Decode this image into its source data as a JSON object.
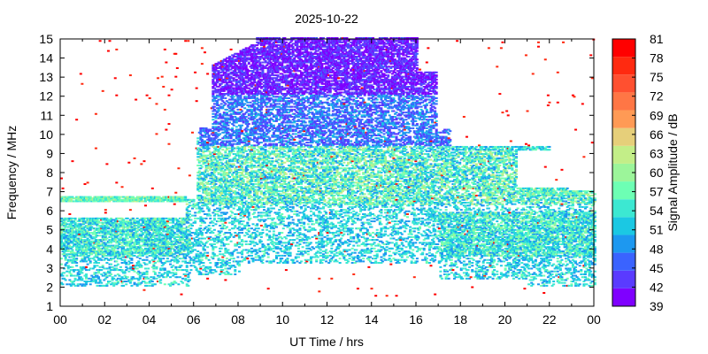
{
  "chart_data": {
    "type": "heatmap",
    "title": "2025-10-22",
    "xlabel": "UT Time / hrs",
    "ylabel": "Frequency / MHz",
    "xlim": [
      0,
      24
    ],
    "ylim": [
      1,
      15
    ],
    "xticks": [
      "00",
      "02",
      "04",
      "06",
      "08",
      "10",
      "12",
      "14",
      "16",
      "18",
      "20",
      "22",
      "00"
    ],
    "yticks": [
      "1",
      "2",
      "3",
      "4",
      "5",
      "6",
      "7",
      "8",
      "9",
      "10",
      "11",
      "12",
      "13",
      "14",
      "15"
    ],
    "colorbar": {
      "label": "Signal Amplitude / dB",
      "ticks": [
        "39",
        "42",
        "45",
        "48",
        "51",
        "54",
        "57",
        "60",
        "63",
        "66",
        "69",
        "72",
        "75",
        "78",
        "81"
      ],
      "min": 39,
      "max": 81,
      "colors": [
        "#7f00ff",
        "#5a3bff",
        "#3a63ff",
        "#1d98f0",
        "#1bc8e3",
        "#3ce8d2",
        "#6dffb4",
        "#9cf59a",
        "#c3ee88",
        "#e6cf7a",
        "#ff9a55",
        "#ff7645",
        "#ff5030",
        "#ff2a10",
        "#ff0000"
      ]
    },
    "grid": false,
    "legend": "none",
    "series_description": [
      {
        "time_range": [
          0,
          5.7
        ],
        "freq_range": [
          2,
          6.6
        ],
        "amplitude": [
          48,
          60
        ]
      },
      {
        "time_range": [
          5.7,
          9
        ],
        "freq_range": [
          2,
          14
        ],
        "amplitude": [
          42,
          60
        ]
      },
      {
        "time_range": [
          9,
          17
        ],
        "freq_range": [
          3,
          15
        ],
        "amplitude": [
          39,
          60
        ]
      },
      {
        "time_range": [
          17,
          24
        ],
        "freq_range": [
          2,
          9.3
        ],
        "amplitude": [
          48,
          63
        ]
      }
    ]
  }
}
